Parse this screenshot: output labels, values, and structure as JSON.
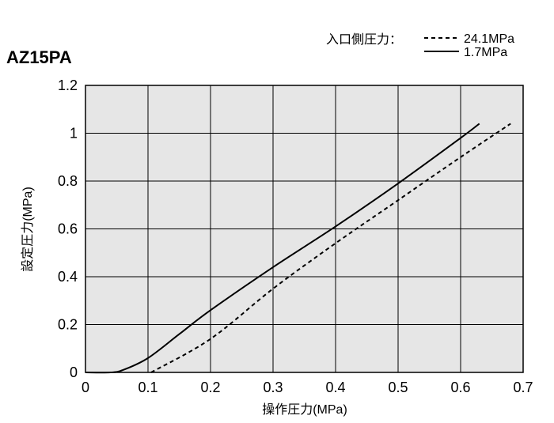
{
  "chart_data": {
    "type": "line",
    "title": "AZ15PA",
    "xlabel": "操作圧力(MPa)",
    "ylabel": "設定圧力(MPa)",
    "xlim": [
      0,
      0.7
    ],
    "ylim": [
      0,
      1.2
    ],
    "x_ticks": [
      "0",
      "0.1",
      "0.2",
      "0.3",
      "0.4",
      "0.5",
      "0.6",
      "0.7"
    ],
    "y_ticks": [
      "0",
      "0.2",
      "0.4",
      "0.6",
      "0.8",
      "1",
      "1.2"
    ],
    "grid": true,
    "legend_title": "入口側圧力：",
    "legend_position": "top-right",
    "series": [
      {
        "name": "24.1MPa",
        "style": "dashed",
        "color": "#000000",
        "x": [
          0.105,
          0.2,
          0.3,
          0.4,
          0.5,
          0.6,
          0.68
        ],
        "y": [
          0,
          0.14,
          0.35,
          0.54,
          0.72,
          0.9,
          1.04
        ]
      },
      {
        "name": "1.7MPa",
        "style": "solid",
        "color": "#000000",
        "x": [
          0,
          0.04,
          0.06,
          0.1,
          0.15,
          0.2,
          0.3,
          0.4,
          0.5,
          0.6,
          0.63
        ],
        "y": [
          0,
          0,
          0.01,
          0.06,
          0.16,
          0.26,
          0.44,
          0.61,
          0.79,
          0.98,
          1.04
        ]
      }
    ]
  },
  "colors": {
    "plot_background": "#e6e6e6",
    "grid": "#000000",
    "line": "#000000"
  }
}
